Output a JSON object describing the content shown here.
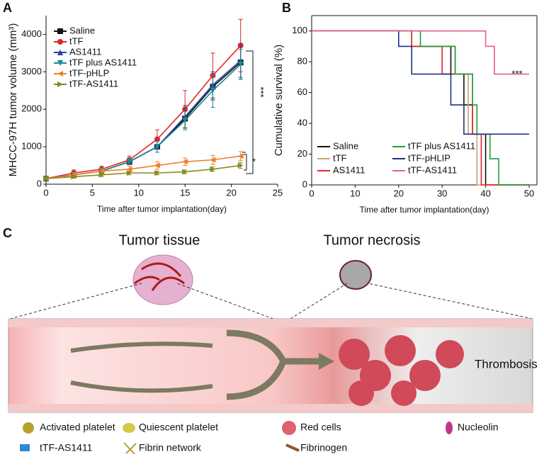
{
  "chart_data": [
    {
      "type": "line",
      "label": "A",
      "x_label": "Time after tumor implantation(day)",
      "y_label": "MHCC-97H tumor volume (mm³)",
      "x": [
        0,
        3,
        6,
        9,
        12,
        15,
        18,
        21
      ],
      "xlim": [
        0,
        25
      ],
      "xticks": [
        0,
        5,
        10,
        15,
        20,
        25
      ],
      "ylim": [
        0,
        4500
      ],
      "yticks": [
        0,
        1000,
        2000,
        3000,
        4000
      ],
      "legend": "upper left",
      "series": [
        {
          "name": "Saline",
          "color": "#111111",
          "marker": "square",
          "values": [
            150,
            250,
            350,
            600,
            1000,
            1750,
            2600,
            3250
          ],
          "errors": [
            40,
            60,
            80,
            80,
            150,
            250,
            350,
            450
          ]
        },
        {
          "name": "tTF",
          "color": "#e0262b",
          "marker": "circle",
          "values": [
            150,
            300,
            400,
            650,
            1200,
            2000,
            2900,
            3700
          ],
          "errors": [
            50,
            80,
            80,
            100,
            250,
            500,
            600,
            700
          ]
        },
        {
          "name": "AS1411",
          "color": "#2a3f9e",
          "marker": "triangle-up",
          "values": [
            150,
            250,
            350,
            600,
            1000,
            1800,
            2650,
            3300
          ],
          "errors": [
            40,
            60,
            80,
            80,
            150,
            300,
            350,
            450
          ]
        },
        {
          "name": "tTF plus AS1411",
          "color": "#1b8a8e",
          "marker": "triangle-down",
          "values": [
            150,
            250,
            350,
            600,
            1000,
            1700,
            2500,
            3200
          ],
          "errors": [
            40,
            60,
            80,
            80,
            150,
            250,
            450,
            400
          ]
        },
        {
          "name": "tTF-pHLP",
          "color": "#f07f2a",
          "marker": "triangle-left",
          "values": [
            150,
            250,
            350,
            400,
            500,
            600,
            650,
            750
          ],
          "errors": [
            30,
            60,
            60,
            80,
            100,
            100,
            120,
            120
          ]
        },
        {
          "name": "tTF-AS1411",
          "color": "#8a8a1e",
          "marker": "triangle-right",
          "values": [
            150,
            200,
            250,
            300,
            300,
            330,
            400,
            500
          ],
          "errors": [
            30,
            40,
            50,
            50,
            50,
            50,
            60,
            80
          ]
        }
      ],
      "annotations": [
        "***",
        "*"
      ]
    },
    {
      "type": "step",
      "label": "B",
      "x_label": "Time after tumor implantation(day)",
      "y_label": "Cumulative survival (%)",
      "xlim": [
        0,
        50
      ],
      "xticks": [
        0,
        10,
        20,
        30,
        40,
        50
      ],
      "ylim": [
        0,
        110
      ],
      "yticks": [
        0,
        20,
        40,
        60,
        80,
        100
      ],
      "legend": "lower left",
      "series": [
        {
          "name": "Saline",
          "color": "#111111",
          "x": [
            0,
            23,
            32,
            35,
            37,
            40
          ],
          "values": [
            100,
            90,
            72,
            52,
            33,
            0
          ]
        },
        {
          "name": "tTF",
          "color": "#c9a66b",
          "x": [
            0,
            23,
            33,
            36,
            38
          ],
          "values": [
            100,
            90,
            72,
            33,
            0
          ]
        },
        {
          "name": "AS1411",
          "color": "#e0262b",
          "x": [
            0,
            23,
            30,
            37,
            39
          ],
          "values": [
            100,
            90,
            72,
            33,
            0
          ]
        },
        {
          "name": "tTF plus AS1411",
          "color": "#1f9e3a",
          "x": [
            0,
            25,
            33,
            37,
            38,
            41,
            43
          ],
          "values": [
            100,
            90,
            72,
            52,
            33,
            17,
            0
          ]
        },
        {
          "name": "tTF-pHLIP",
          "color": "#1f2f8a",
          "x": [
            0,
            20,
            23,
            32,
            35,
            50
          ],
          "values": [
            100,
            90,
            72,
            52,
            33,
            33
          ]
        },
        {
          "name": "tTF-AS1411",
          "color": "#ee5a9a",
          "x": [
            0,
            40,
            42,
            50
          ],
          "values": [
            100,
            90,
            72,
            72
          ]
        }
      ],
      "annotations": [
        "***"
      ]
    }
  ],
  "diagram": {
    "label": "C",
    "left_title": "Tumor tissue",
    "right_title": "Tumor necrosis",
    "region": "Thrombosis",
    "legend": [
      "Activated platelet",
      "Quiescent platelet",
      "Red cells",
      "Nucleolin",
      "tTF-AS1411",
      "Fibrin network",
      "Fibrinogen"
    ]
  }
}
